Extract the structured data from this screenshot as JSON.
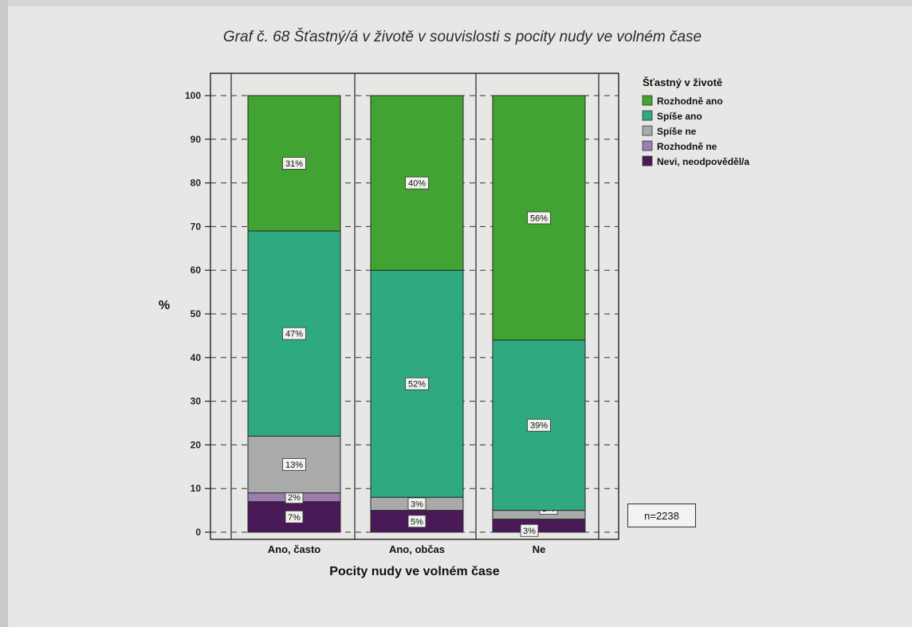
{
  "chart_data": {
    "type": "bar",
    "stacked": true,
    "title": "Graf č. 68 Šťastný/á v životě v souvislosti s pocity nudy ve volném čase",
    "xlabel": "Pocity nudy ve volném čase",
    "ylabel": "%",
    "ylim": [
      0,
      100
    ],
    "yticks": [
      0,
      10,
      20,
      30,
      40,
      50,
      60,
      70,
      80,
      90,
      100
    ],
    "categories": [
      "Ano, často",
      "Ano, občas",
      "Ne"
    ],
    "legend_title": "Šťastný v životě",
    "legend_position": "top-right",
    "grid": true,
    "series": [
      {
        "name": "Nevi, neodpověděl/a",
        "color": "#4a1a58",
        "values": [
          7,
          5,
          3
        ],
        "labels": [
          "7%",
          "5%",
          "3%"
        ]
      },
      {
        "name": "Rozhodně ne",
        "color": "#9d7cb0",
        "values": [
          2,
          0,
          0
        ],
        "labels": [
          "2%",
          "",
          ""
        ]
      },
      {
        "name": "Spíše ne",
        "color": "#a9abaa",
        "values": [
          13,
          3,
          2
        ],
        "labels": [
          "13%",
          "3%",
          "2%"
        ]
      },
      {
        "name": "Spíše ano",
        "color": "#2faa80",
        "values": [
          47,
          52,
          39
        ],
        "labels": [
          "47%",
          "52%",
          "39%"
        ]
      },
      {
        "name": "Rozhodně ano",
        "color": "#41a332",
        "values": [
          31,
          40,
          56
        ],
        "labels": [
          "31%",
          "40%",
          "56%"
        ]
      }
    ],
    "legend_order": [
      "Rozhodně ano",
      "Spíše ano",
      "Spíše ne",
      "Rozhodně ne",
      "Nevi, neodpověděl/a"
    ],
    "note": "n=2238"
  }
}
